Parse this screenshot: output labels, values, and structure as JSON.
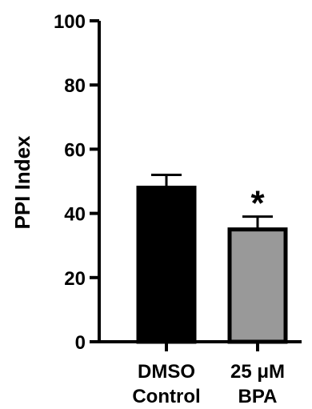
{
  "chart_data": {
    "type": "bar",
    "categories": [
      [
        "DMSO",
        "Control"
      ],
      [
        "25 μM",
        "BPA"
      ]
    ],
    "values": [
      48,
      35
    ],
    "errors": [
      4,
      4
    ],
    "colors": [
      "#000000",
      "#999999"
    ],
    "ylabel": "PPI Index",
    "ylim": [
      0,
      100
    ],
    "yticks": [
      0,
      20,
      40,
      60,
      80,
      100
    ],
    "annotations": [
      {
        "category_index": 1,
        "text": "*"
      }
    ],
    "grid": false
  }
}
